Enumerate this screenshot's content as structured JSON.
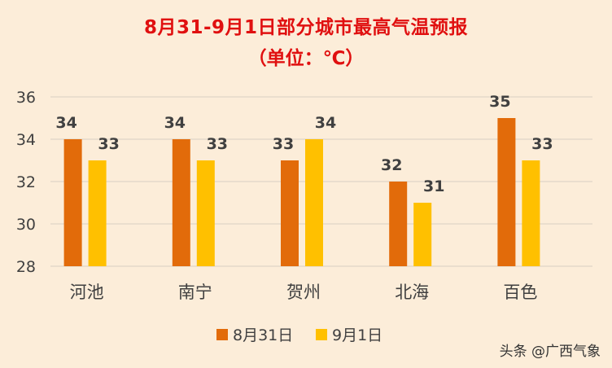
{
  "chart_data": {
    "type": "bar",
    "title": "8月31-9月1日部分城市最高气温预报",
    "subtitle": "（单位：℃）",
    "categories": [
      "河池",
      "南宁",
      "贺州",
      "北海",
      "百色"
    ],
    "series": [
      {
        "name": "8月31日",
        "values": [
          34,
          34,
          33,
          32,
          35
        ],
        "color": "#e26b0a"
      },
      {
        "name": "9月1日",
        "values": [
          33,
          33,
          34,
          31,
          33
        ],
        "color": "#ffc000"
      }
    ],
    "ylim": [
      28,
      36
    ],
    "yticks": [
      28,
      30,
      32,
      34,
      36
    ],
    "grid": true,
    "legend_position": "bottom"
  },
  "watermark": "头条 @广西气象",
  "colors": {
    "background": "#fcedd9",
    "title": "#e01010",
    "gridline": "#d9cfc4",
    "text": "#404040"
  }
}
